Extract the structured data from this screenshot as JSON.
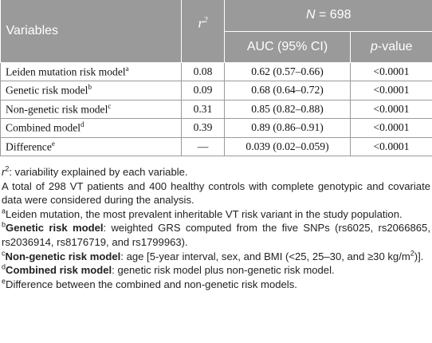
{
  "header": {
    "variables": "Variables",
    "r2_base": "r",
    "r2_exp": "2",
    "n_italic": "N",
    "n_value": " = 698",
    "auc": "AUC (95% CI)",
    "pvalue_italic": "p",
    "pvalue_rest": "-value"
  },
  "rows": [
    {
      "label": "Leiden mutation risk model",
      "sup": "a",
      "r2": "0.08",
      "auc": "0.62 (0.57–0.66)",
      "p": "<0.0001"
    },
    {
      "label": "Genetic risk model",
      "sup": "b",
      "r2": "0.09",
      "auc": "0.68 (0.64–0.72)",
      "p": "<0.0001"
    },
    {
      "label": "Non-genetic risk model",
      "sup": "c",
      "r2": "0.31",
      "auc": "0.85 (0.82–0.88)",
      "p": "<0.0001"
    },
    {
      "label": "Combined model",
      "sup": "d",
      "r2": "0.39",
      "auc": "0.89 (0.86–0.91)",
      "p": "<0.0001"
    },
    {
      "label": "Difference",
      "sup": "e",
      "r2": "—",
      "auc": "0.039 (0.02–0.059)",
      "p": "<0.0001"
    }
  ],
  "notes": {
    "n1_r": "r",
    "n1_exp": "2",
    "n1_text": ": variability explained by each variable.",
    "n2": "A total of 298 VT patients and 400 healthy controls with complete genotypic and covariate data were considered during the analysis.",
    "n3_sup": "a",
    "n3": "Leiden mutation, the most prevalent inheritable VT risk variant in the study population.",
    "n4_sup": "b",
    "n4_bold": "Genetic risk model",
    "n4": ": weighted GRS computed from the five SNPs (rs6025, rs2066865, rs2036914, rs8176719, and rs1799963).",
    "n5_sup": "c",
    "n5_bold": "Non-genetic risk model",
    "n5_a": ": age [5-year interval, sex, and BMI (<25, 25–30, and ≥30 kg/m",
    "n5_exp": "2",
    "n5_b": ")].",
    "n6_sup": "d",
    "n6_bold": "Combined risk model",
    "n6": ": genetic risk model plus non-genetic risk model.",
    "n7_sup": "e",
    "n7": "Difference between the combined and non-genetic risk models."
  }
}
